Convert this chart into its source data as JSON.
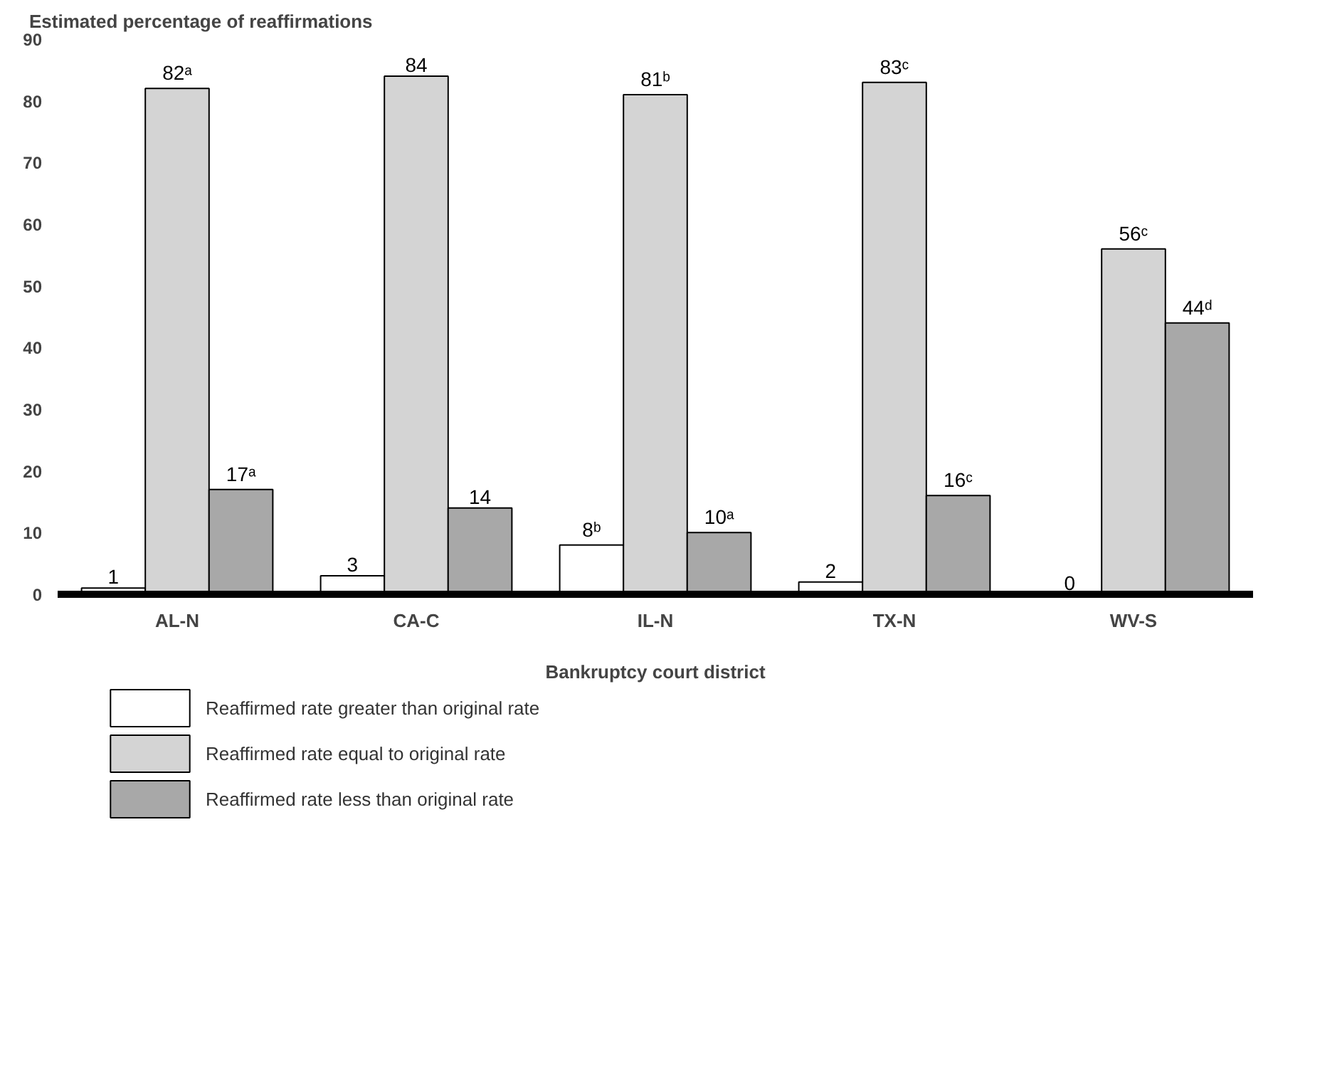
{
  "chart_data": {
    "type": "bar",
    "ylabel": "Estimated percentage of reaffirmations",
    "xlabel": "Bankruptcy court district",
    "categories": [
      "AL-N",
      "CA-C",
      "IL-N",
      "TX-N",
      "WV-S"
    ],
    "series": [
      {
        "name": "Reaffirmed rate greater than original rate",
        "color": "#ffffff",
        "values": [
          1,
          3,
          8,
          2,
          0
        ],
        "value_labels": [
          "1",
          "3",
          "8ᵇ",
          "2",
          "0"
        ]
      },
      {
        "name": "Reaffirmed rate equal to original rate",
        "color": "#d4d4d4",
        "values": [
          82,
          84,
          81,
          83,
          56
        ],
        "value_labels": [
          "82ᵃ",
          "84",
          "81ᵇ",
          "83ᶜ",
          "56ᶜ"
        ]
      },
      {
        "name": "Reaffirmed rate less than original rate",
        "color": "#a8a8a8",
        "values": [
          17,
          14,
          10,
          16,
          44
        ],
        "value_labels": [
          "17ᵃ",
          "14",
          "10ᵃ",
          "16ᶜ",
          "44ᵈ"
        ]
      }
    ],
    "ylim": [
      0,
      90
    ],
    "yticks": [
      0,
      10,
      20,
      30,
      40,
      50,
      60,
      70,
      80,
      90
    ],
    "legend": "bottom"
  }
}
